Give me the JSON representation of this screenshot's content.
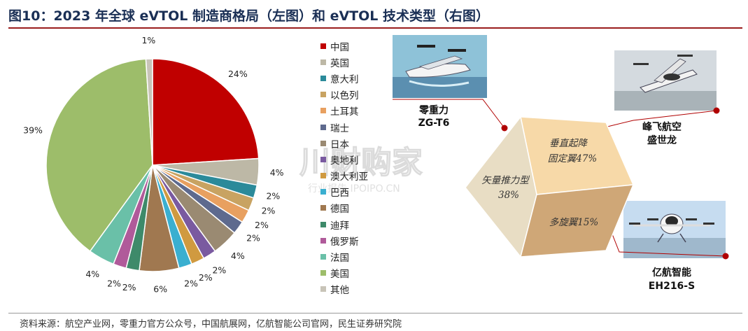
{
  "title": "图10：2023 年全球 eVTOL 制造商格局（左图）和 eVTOL 技术类型（右图）",
  "footer": "资料来源：航空产业网，零重力官方公众号，中国航展网，亿航智能公司官网，民生证券研究院",
  "chart_data": [
    {
      "type": "pie",
      "title": "",
      "legend_position": "right",
      "slices": [
        {
          "name": "中国",
          "value": 24,
          "label": "24%",
          "color": "#c00000"
        },
        {
          "name": "英国",
          "value": 4,
          "label": "4%",
          "color": "#bdb8a6"
        },
        {
          "name": "意大利",
          "value": 2,
          "label": "2%",
          "color": "#2b8a9a"
        },
        {
          "name": "以色列",
          "value": 2,
          "label": "2%",
          "color": "#c8a362"
        },
        {
          "name": "土耳其",
          "value": 2,
          "label": "2%",
          "color": "#e8a060"
        },
        {
          "name": "瑞士",
          "value": 2,
          "label": "2%",
          "color": "#5e6a8e"
        },
        {
          "name": "日本",
          "value": 4,
          "label": "4%",
          "color": "#9a8a72"
        },
        {
          "name": "奥地利",
          "value": 2,
          "label": "2%",
          "color": "#7a5aa0"
        },
        {
          "name": "澳大利亚",
          "value": 2,
          "label": "2%",
          "color": "#d09a40"
        },
        {
          "name": "巴西",
          "value": 2,
          "label": "2%",
          "color": "#3aafd0"
        },
        {
          "name": "德国",
          "value": 6,
          "label": "6%",
          "color": "#a07850"
        },
        {
          "name": "迪拜",
          "value": 2,
          "label": "2%",
          "color": "#3e8a6a"
        },
        {
          "name": "俄罗斯",
          "value": 2,
          "label": "2%",
          "color": "#b05a9a"
        },
        {
          "name": "法国",
          "value": 4,
          "label": "4%",
          "color": "#6ac0a8"
        },
        {
          "name": "美国",
          "value": 39,
          "label": "39%",
          "color": "#9dbd6a"
        },
        {
          "name": "其他",
          "value": 1,
          "label": "1%",
          "color": "#c8c4b8"
        }
      ]
    },
    {
      "type": "diagram",
      "title": "",
      "faces": [
        {
          "line1": "垂直起降",
          "line2": "固定翼47%",
          "color": "#f7d9a8"
        },
        {
          "line1": "矢量推力型",
          "line2": "38%",
          "color": "#e8ddc4"
        },
        {
          "line1": "多旋翼15%",
          "line2": "",
          "color": "#cfa777"
        }
      ],
      "callouts": [
        {
          "line1": "零重力",
          "line2": "ZG-T6"
        },
        {
          "line1": "峰飞航空",
          "line2": "盛世龙"
        },
        {
          "line1": "亿航智能",
          "line2": "EH216-S"
        }
      ]
    }
  ],
  "watermark": {
    "main": "川财购家",
    "sub": "行业报告 IPOIPO.CN"
  },
  "colors": {
    "title": "#1a2f55",
    "accent": "#9a1d1d",
    "callout_line": "#b00000"
  }
}
